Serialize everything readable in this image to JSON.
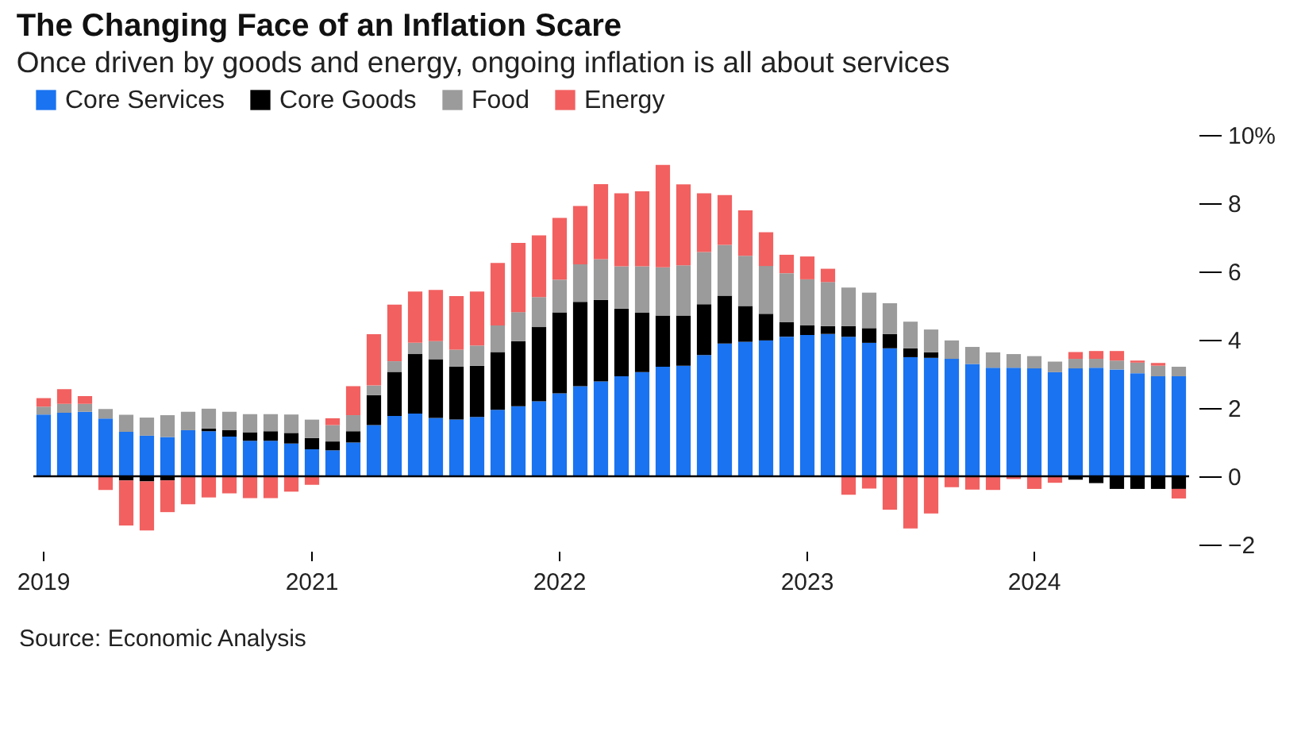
{
  "chart_data": {
    "type": "bar",
    "title": "The Changing Face of an Inflation Scare",
    "subtitle": "Once driven by goods and energy, ongoing inflation is all about services",
    "categories": [
      "2019",
      null,
      null,
      null,
      null,
      null,
      null,
      null,
      null,
      null,
      null,
      null,
      null,
      "2021",
      null,
      null,
      null,
      null,
      null,
      null,
      null,
      null,
      null,
      null,
      null,
      "2022",
      null,
      null,
      null,
      null,
      null,
      null,
      null,
      null,
      null,
      null,
      null,
      "2023",
      null,
      null,
      null,
      null,
      null,
      null,
      null,
      null,
      null,
      null,
      "2024",
      null,
      null,
      null,
      null,
      null,
      null,
      null
    ],
    "stacked": true,
    "legend": "top left",
    "ylim": [
      -2,
      10
    ],
    "yticks": [
      -2,
      0,
      2,
      4,
      6,
      8,
      {
        "value": 10,
        "label": "10%"
      }
    ],
    "grid": false,
    "ref_lines": [
      {
        "axis": "y",
        "value": 0,
        "color": "#000000"
      }
    ],
    "annotations": [
      "Source: Economic Analysis"
    ],
    "series": [
      {
        "name": "Core Services",
        "color": "#1a73f0",
        "values": [
          1.81,
          1.86,
          1.89,
          1.69,
          1.3,
          1.19,
          1.15,
          1.35,
          1.32,
          1.16,
          1.04,
          1.04,
          0.96,
          0.79,
          0.76,
          0.99,
          1.5,
          1.77,
          1.84,
          1.71,
          1.66,
          1.74,
          1.95,
          2.05,
          2.2,
          2.43,
          2.64,
          2.78,
          2.93,
          3.05,
          3.21,
          3.24,
          3.55,
          3.89,
          3.94,
          3.98,
          4.09,
          4.14,
          4.17,
          4.09,
          3.91,
          3.75,
          3.49,
          3.47,
          3.44,
          3.29,
          3.18,
          3.18,
          3.16,
          3.05,
          3.16,
          3.18,
          3.13,
          3.02,
          2.93,
          2.93
        ]
      },
      {
        "name": "Core Goods",
        "color": "#000000",
        "values": [
          null,
          null,
          null,
          null,
          -0.12,
          -0.15,
          -0.12,
          null,
          0.08,
          0.19,
          0.25,
          0.28,
          0.31,
          0.33,
          0.26,
          0.33,
          0.88,
          1.29,
          1.74,
          1.72,
          1.55,
          1.5,
          1.69,
          1.91,
          2.17,
          2.37,
          2.47,
          2.39,
          1.98,
          1.74,
          1.5,
          1.47,
          1.49,
          1.4,
          1.05,
          0.78,
          0.43,
          0.28,
          0.23,
          0.31,
          0.43,
          0.42,
          0.26,
          0.16,
          null,
          null,
          null,
          null,
          null,
          null,
          -0.1,
          -0.2,
          -0.37,
          -0.37,
          -0.37,
          -0.37
        ]
      },
      {
        "name": "Food",
        "color": "#9b9b9b",
        "values": [
          0.23,
          0.26,
          0.23,
          0.28,
          0.5,
          0.53,
          0.64,
          0.54,
          0.58,
          0.54,
          0.53,
          0.5,
          0.54,
          0.54,
          0.48,
          0.47,
          0.28,
          0.31,
          0.33,
          0.53,
          0.5,
          0.59,
          0.78,
          0.85,
          0.88,
          0.96,
          1.1,
          1.19,
          1.24,
          1.36,
          1.41,
          1.47,
          1.53,
          1.49,
          1.47,
          1.4,
          1.43,
          1.35,
          1.29,
          1.13,
          1.04,
          0.9,
          0.78,
          0.67,
          0.54,
          0.5,
          0.45,
          0.4,
          0.36,
          0.31,
          0.28,
          0.26,
          0.26,
          0.31,
          0.31,
          0.28
        ]
      },
      {
        "name": "Energy",
        "color": "#f26060",
        "values": [
          0.25,
          0.43,
          0.23,
          -0.4,
          -1.32,
          -1.44,
          -0.93,
          -0.82,
          -0.62,
          -0.5,
          -0.64,
          -0.64,
          -0.45,
          -0.25,
          0.2,
          0.85,
          1.5,
          1.66,
          1.5,
          1.5,
          1.57,
          1.58,
          1.83,
          2.03,
          1.81,
          1.81,
          1.71,
          2.2,
          2.14,
          2.2,
          3.0,
          2.37,
          1.72,
          1.46,
          1.33,
          0.99,
          0.54,
          0.67,
          0.39,
          -0.54,
          -0.36,
          -0.98,
          -1.53,
          -1.09,
          -0.32,
          -0.39,
          -0.4,
          -0.08,
          -0.37,
          -0.19,
          0.2,
          0.23,
          0.28,
          0.06,
          0.08,
          -0.28
        ]
      }
    ]
  }
}
